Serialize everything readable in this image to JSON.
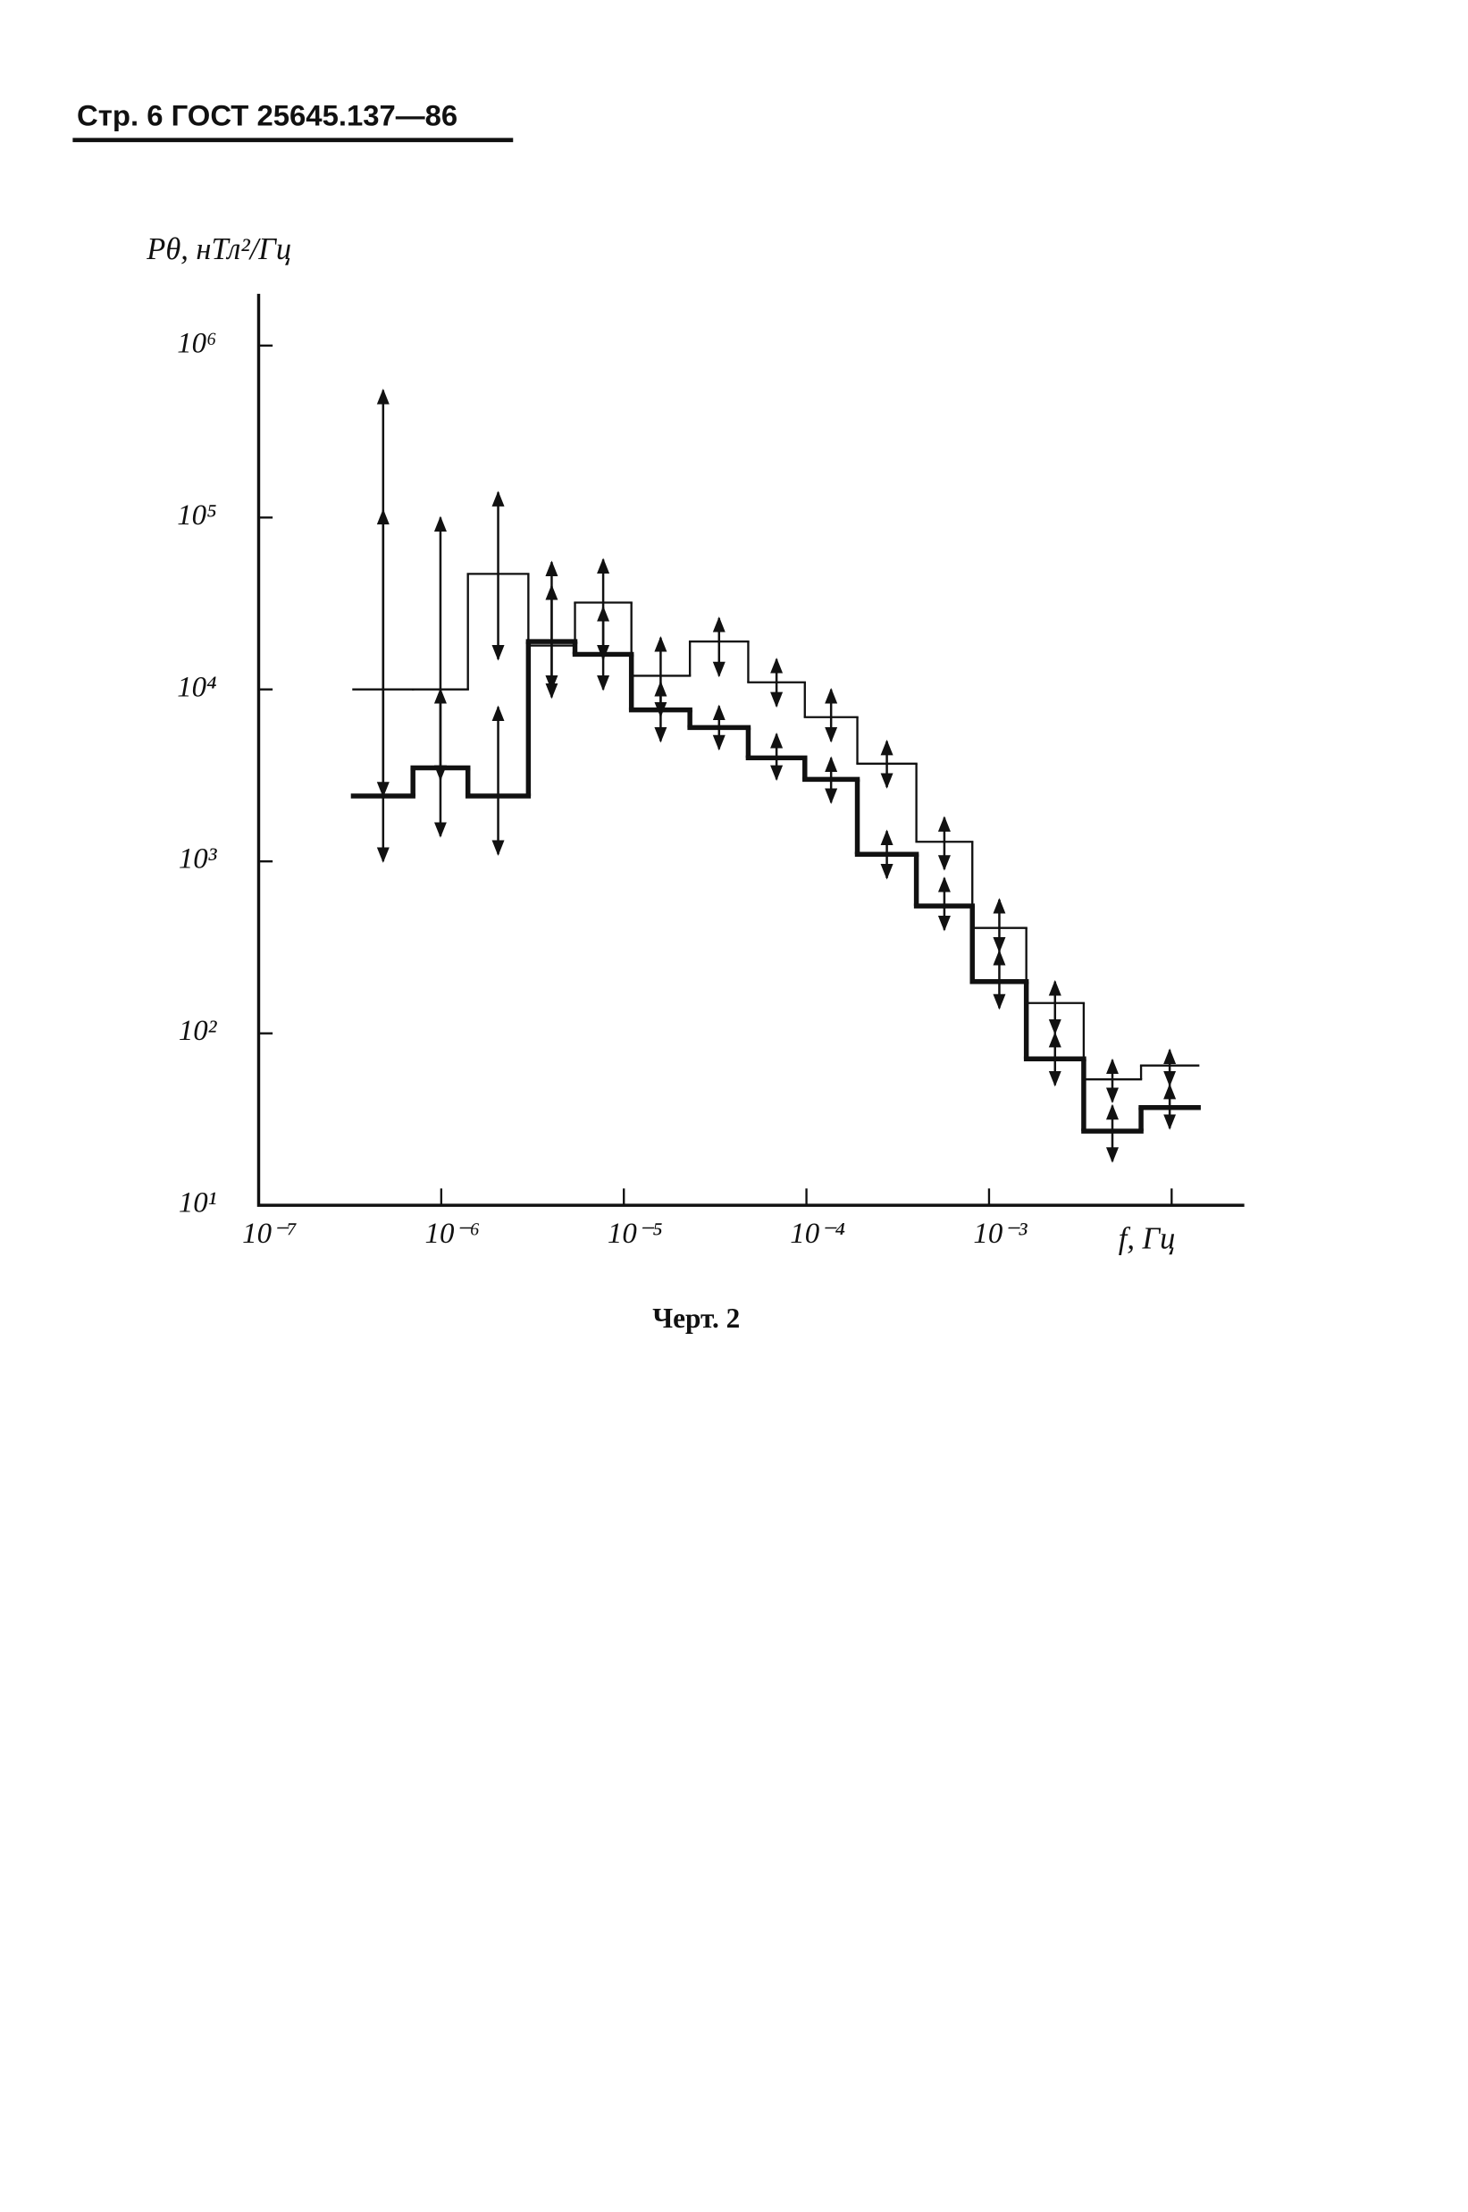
{
  "header": "Стр. 6 ГОСТ 25645.137—86",
  "caption": "Черт. 2",
  "chart_data": {
    "type": "step",
    "ylabel": "Pθ, нТл²/Гц",
    "xlabel": "f, Гц",
    "log_x": true,
    "log_y": true,
    "xlim": [
      1e-07,
      0.025
    ],
    "ylim": [
      10,
      2000000
    ],
    "xticks": [
      {
        "value": 1e-07,
        "label": "10⁻⁷"
      },
      {
        "value": 1e-06,
        "label": "10⁻⁶"
      },
      {
        "value": 1e-05,
        "label": "10⁻⁵"
      },
      {
        "value": 0.0001,
        "label": "10⁻⁴"
      },
      {
        "value": 0.001,
        "label": "10⁻³"
      }
    ],
    "minor_xticks": [
      0.01
    ],
    "yticks": [
      {
        "value": 10,
        "label": "10¹"
      },
      {
        "value": 100,
        "label": "10²"
      },
      {
        "value": 1000,
        "label": "10³"
      },
      {
        "value": 10000,
        "label": "10⁴"
      },
      {
        "value": 100000,
        "label": "10⁵"
      },
      {
        "value": 1000000,
        "label": "10⁶"
      }
    ],
    "edges": [
      3.3e-07,
      7e-07,
      1.4e-06,
      3e-06,
      5.4e-06,
      1.1e-05,
      2.3e-05,
      4.8e-05,
      9.8e-05,
      0.00019,
      0.0004,
      0.00081,
      0.0016,
      0.0033,
      0.0068,
      0.014
    ],
    "series": [
      {
        "color": "#111",
        "line_width": 1.5,
        "values": [
          10000,
          10000,
          47000,
          18000,
          32000,
          12000,
          19000,
          11000,
          6900,
          3700,
          1300,
          410,
          150,
          54,
          65
        ],
        "lower": [
          2400,
          3000,
          15000,
          10000,
          15000,
          7000,
          12000,
          8000,
          5000,
          2700,
          900,
          300,
          100,
          40,
          50
        ],
        "upper": [
          550000,
          100000,
          140000,
          55000,
          57000,
          20000,
          26000,
          15000,
          10000,
          5000,
          1800,
          600,
          200,
          70,
          80
        ]
      },
      {
        "color": "#111",
        "line_width": 3.5,
        "values": [
          2400,
          3500,
          2400,
          19000,
          16000,
          7600,
          6000,
          4000,
          3000,
          1100,
          550,
          200,
          71,
          27,
          37
        ],
        "lower": [
          1000,
          1400,
          1100,
          9000,
          10000,
          5000,
          4500,
          3000,
          2200,
          800,
          400,
          140,
          50,
          18,
          28
        ],
        "upper": [
          110000,
          10000,
          7900,
          40000,
          30000,
          11000,
          8000,
          5500,
          4000,
          1500,
          800,
          300,
          100,
          38,
          50
        ]
      }
    ]
  }
}
